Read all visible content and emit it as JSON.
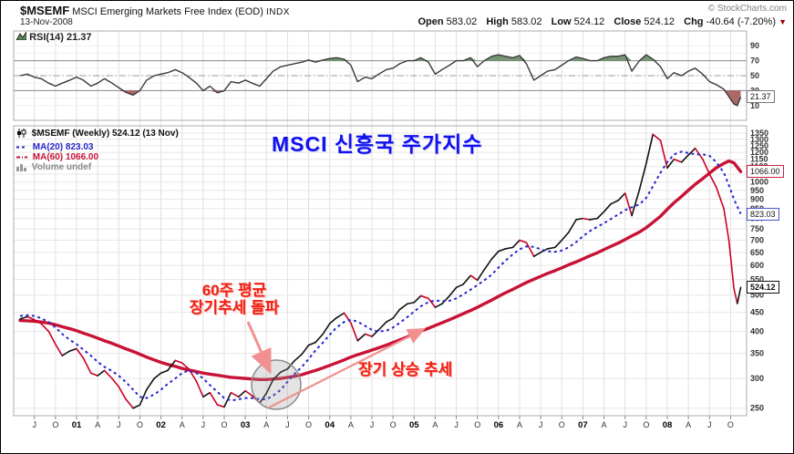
{
  "header": {
    "symbol": "$MSEMF",
    "title": "MSCI Emerging Markets Free Index (EOD)",
    "exchange": "INDX",
    "date": "13-Nov-2008",
    "copyright": "© StockCharts.com",
    "quote": {
      "open_label": "Open",
      "open": "583.02",
      "high_label": "High",
      "high": "583.02",
      "low_label": "Low",
      "low": "524.12",
      "close_label": "Close",
      "close": "524.12",
      "chg_label": "Chg",
      "chg": "-40.64 (-7.20%)",
      "down_arrow": "▼"
    }
  },
  "rsi_panel": {
    "legend": "RSI(14) 21.37",
    "callout": "21.37"
  },
  "main_panel": {
    "legend_symbol": "$MSEMF (Weekly) 524.12 (13 Nov)",
    "legend_ma20": "MA(20) 823.03",
    "legend_ma60": "MA(60) 1066.00",
    "legend_volume": "Volume undef",
    "callout_ma60": "1066.00",
    "callout_ma20": "823.03",
    "callout_close": "524.12"
  },
  "annotations": {
    "title_ko": "MSCI 신흥국 주가지수",
    "breakout_line1": "60주 평균",
    "breakout_line2": "장기추세 돌파",
    "uptrend": "장기 상승 추세"
  },
  "x_axis": {
    "labels": [
      "J",
      "O",
      "01",
      "A",
      "J",
      "O",
      "02",
      "A",
      "J",
      "O",
      "03",
      "A",
      "J",
      "O",
      "04",
      "A",
      "J",
      "O",
      "05",
      "A",
      "J",
      "O",
      "06",
      "A",
      "J",
      "O",
      "07",
      "A",
      "J",
      "O",
      "08",
      "A",
      "J",
      "O"
    ],
    "bold_indices": [
      2,
      6,
      10,
      14,
      18,
      22,
      26,
      30
    ]
  },
  "colors": {
    "ma20_blue": "#2626cc",
    "ma60_red": "#c81236",
    "price_up": "#111111",
    "price_down": "#cc0022",
    "rsi_line": "#3a3a3a",
    "rsi_fill_high": "#6e8f6e",
    "rsi_fill_low": "#a85f5f",
    "grid": "#e0e0e0",
    "panel_border": "#adadad",
    "axis_text": "#333333",
    "annotation_red": "#ee2211",
    "title_blue": "#1111ee",
    "arrow_salmon": "#f29090",
    "callout_ma60_border": "#cc2244",
    "callout_ma20_border": "#4455cc",
    "callout_close_border": "#111111",
    "callout_rsi_border": "#777777"
  },
  "chart_data": {
    "type": "line",
    "title": "$MSEMF MSCI Emerging Markets Free Index (EOD) weekly with RSI(14), MA(20), MA(60)",
    "x_label": "time (years 2000-2008, quarters J A J O)",
    "x_years": [
      2000.33,
      2000.42,
      2000.5,
      2000.58,
      2000.67,
      2000.75,
      2000.83,
      2000.92,
      2001.0,
      2001.08,
      2001.17,
      2001.25,
      2001.33,
      2001.42,
      2001.5,
      2001.58,
      2001.67,
      2001.75,
      2001.83,
      2001.92,
      2002.0,
      2002.08,
      2002.17,
      2002.25,
      2002.33,
      2002.42,
      2002.5,
      2002.58,
      2002.67,
      2002.75,
      2002.83,
      2002.92,
      2003.0,
      2003.08,
      2003.17,
      2003.25,
      2003.33,
      2003.42,
      2003.5,
      2003.58,
      2003.67,
      2003.75,
      2003.83,
      2003.92,
      2004.0,
      2004.08,
      2004.17,
      2004.25,
      2004.33,
      2004.42,
      2004.5,
      2004.58,
      2004.67,
      2004.75,
      2004.83,
      2004.92,
      2005.0,
      2005.08,
      2005.17,
      2005.25,
      2005.33,
      2005.42,
      2005.5,
      2005.58,
      2005.67,
      2005.75,
      2005.83,
      2005.92,
      2006.0,
      2006.08,
      2006.17,
      2006.25,
      2006.33,
      2006.42,
      2006.5,
      2006.58,
      2006.67,
      2006.75,
      2006.83,
      2006.92,
      2007.0,
      2007.08,
      2007.17,
      2007.25,
      2007.33,
      2007.42,
      2007.5,
      2007.58,
      2007.67,
      2007.75,
      2007.83,
      2007.92,
      2008.0,
      2008.08,
      2008.17,
      2008.25,
      2008.33,
      2008.42,
      2008.5,
      2008.58,
      2008.67,
      2008.73,
      2008.79,
      2008.83,
      2008.87
    ],
    "rsi": {
      "name": "RSI(14)",
      "last": 21.37,
      "ylim": [
        0,
        100
      ],
      "overbought": 70,
      "oversold": 30,
      "midline": 50,
      "ticks": [
        90,
        70,
        50,
        30,
        10
      ],
      "values": [
        50,
        52,
        48,
        46,
        40,
        36,
        40,
        44,
        48,
        44,
        36,
        40,
        46,
        40,
        34,
        28,
        24,
        30,
        44,
        50,
        52,
        54,
        58,
        54,
        48,
        40,
        30,
        36,
        27,
        30,
        42,
        40,
        44,
        40,
        36,
        46,
        56,
        62,
        64,
        66,
        68,
        71,
        68,
        71,
        73,
        74,
        72,
        64,
        42,
        48,
        46,
        52,
        58,
        60,
        66,
        70,
        70,
        74,
        68,
        52,
        58,
        64,
        70,
        70,
        74,
        62,
        70,
        76,
        78,
        76,
        74,
        77,
        66,
        44,
        50,
        56,
        58,
        64,
        70,
        75,
        73,
        70,
        70,
        74,
        76,
        76,
        78,
        56,
        70,
        78,
        72,
        62,
        46,
        54,
        50,
        56,
        60,
        52,
        42,
        38,
        32,
        22,
        12,
        10,
        21.37
      ]
    },
    "price_panel": {
      "yscale": "log",
      "ylim": [
        235,
        1437
      ],
      "ticks_min": 250,
      "ticks_max": 1350,
      "ticks_step": 50,
      "series": [
        {
          "name": "$MSEMF weekly close",
          "last": 524.12,
          "values": [
            432,
            438,
            430,
            420,
            400,
            370,
            345,
            355,
            360,
            340,
            310,
            305,
            315,
            300,
            285,
            265,
            250,
            255,
            280,
            300,
            310,
            315,
            335,
            330,
            318,
            295,
            268,
            275,
            255,
            252,
            275,
            268,
            278,
            270,
            258,
            274,
            298,
            312,
            318,
            334,
            348,
            368,
            374,
            394,
            420,
            435,
            448,
            422,
            378,
            394,
            388,
            404,
            424,
            434,
            458,
            474,
            478,
            498,
            490,
            464,
            474,
            498,
            524,
            534,
            564,
            548,
            584,
            624,
            654,
            664,
            670,
            700,
            690,
            634,
            650,
            664,
            670,
            700,
            734,
            794,
            800,
            794,
            800,
            834,
            874,
            894,
            934,
            814,
            954,
            1120,
            1340,
            1290,
            1090,
            1150,
            1130,
            1180,
            1230,
            1150,
            1050,
            970,
            850,
            700,
            520,
            475,
            524.12
          ]
        },
        {
          "name": "MA(20)",
          "last": 823.03,
          "values": [
            440,
            442,
            440,
            434,
            424,
            410,
            394,
            380,
            370,
            358,
            345,
            332,
            322,
            314,
            305,
            294,
            280,
            268,
            266,
            272,
            280,
            290,
            300,
            310,
            315,
            310,
            300,
            288,
            276,
            266,
            262,
            264,
            266,
            266,
            264,
            264,
            270,
            280,
            294,
            308,
            322,
            338,
            356,
            374,
            392,
            410,
            424,
            430,
            425,
            414,
            404,
            400,
            402,
            410,
            422,
            437,
            452,
            467,
            479,
            484,
            482,
            483,
            490,
            502,
            517,
            532,
            547,
            567,
            592,
            617,
            642,
            662,
            674,
            672,
            662,
            654,
            652,
            657,
            670,
            692,
            717,
            740,
            760,
            777,
            797,
            820,
            842,
            857,
            872,
            907,
            975,
            1060,
            1130,
            1185,
            1205,
            1195,
            1185,
            1185,
            1175,
            1130,
            1060,
            980,
            900,
            860,
            823.03
          ]
        },
        {
          "name": "MA(60)",
          "last": 1066.0,
          "values": [
            428,
            427,
            426,
            424,
            421,
            417,
            412,
            407,
            402,
            396,
            390,
            384,
            378,
            372,
            366,
            360,
            354,
            348,
            342,
            336,
            331,
            327,
            323,
            319,
            316,
            313,
            310,
            308,
            306,
            304,
            302,
            301,
            300,
            299,
            298,
            298,
            299,
            300,
            302,
            304,
            307,
            311,
            315,
            320,
            325,
            330,
            336,
            342,
            347,
            352,
            357,
            362,
            368,
            374,
            380,
            387,
            394,
            401,
            408,
            415,
            422,
            430,
            438,
            446,
            455,
            464,
            474,
            485,
            496,
            507,
            518,
            529,
            540,
            551,
            561,
            571,
            581,
            591,
            602,
            613,
            624,
            636,
            648,
            661,
            674,
            688,
            703,
            719,
            736,
            756,
            781,
            811,
            846,
            881,
            916,
            951,
            986,
            1021,
            1056,
            1091,
            1121,
            1138,
            1125,
            1095,
            1066
          ]
        }
      ]
    }
  }
}
